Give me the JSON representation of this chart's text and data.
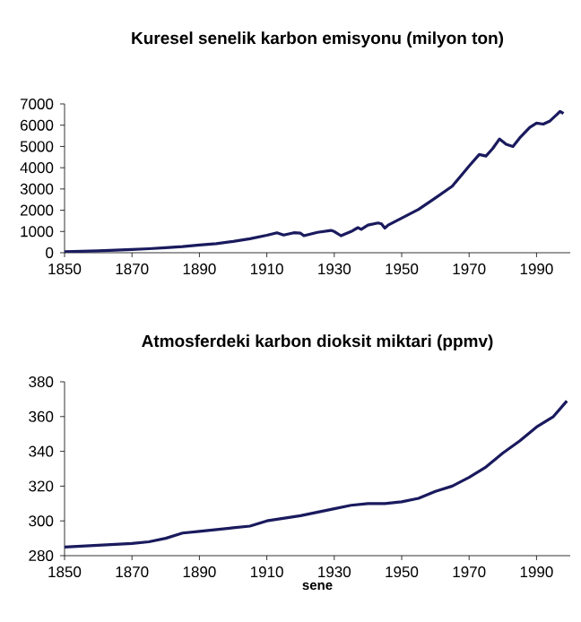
{
  "chart_data": [
    {
      "type": "line",
      "title": "Kuresel senelik karbon emisyonu (milyon ton)",
      "color": "#1a1a5e",
      "x": [
        1850,
        1855,
        1860,
        1865,
        1870,
        1875,
        1880,
        1885,
        1890,
        1895,
        1900,
        1905,
        1910,
        1913,
        1915,
        1918,
        1920,
        1921,
        1925,
        1929,
        1930,
        1932,
        1935,
        1937,
        1938,
        1940,
        1943,
        1944,
        1945,
        1946,
        1950,
        1955,
        1960,
        1965,
        1970,
        1973,
        1975,
        1977,
        1979,
        1981,
        1983,
        1985,
        1988,
        1990,
        1992,
        1994,
        1996,
        1997,
        1998
      ],
      "values": [
        50,
        70,
        90,
        120,
        150,
        190,
        240,
        290,
        360,
        430,
        530,
        660,
        820,
        940,
        830,
        940,
        920,
        800,
        960,
        1050,
        1000,
        800,
        1000,
        1180,
        1100,
        1300,
        1400,
        1360,
        1160,
        1300,
        1630,
        2040,
        2580,
        3130,
        4080,
        4620,
        4550,
        4900,
        5350,
        5100,
        5000,
        5400,
        5900,
        6100,
        6050,
        6200,
        6500,
        6650,
        6550
      ],
      "xlim": [
        1850,
        2000
      ],
      "xticks": [
        1850,
        1870,
        1890,
        1910,
        1930,
        1950,
        1970,
        1990
      ],
      "ylim": [
        0,
        7000
      ],
      "yticks": [
        0,
        1000,
        2000,
        3000,
        4000,
        5000,
        6000,
        7000
      ]
    },
    {
      "type": "line",
      "title": "Atmosferdeki karbon dioksit miktari (ppmv)",
      "xlabel": "sene",
      "color": "#1a1a5e",
      "x": [
        1850,
        1860,
        1870,
        1875,
        1880,
        1885,
        1890,
        1900,
        1905,
        1910,
        1920,
        1930,
        1935,
        1940,
        1945,
        1950,
        1955,
        1960,
        1965,
        1970,
        1975,
        1980,
        1985,
        1990,
        1995,
        1999
      ],
      "values": [
        285,
        286,
        287,
        288,
        290,
        293,
        294,
        296,
        297,
        300,
        303,
        307,
        309,
        310,
        310,
        311,
        313,
        317,
        320,
        325,
        331,
        339,
        346,
        354,
        360,
        369
      ],
      "xlim": [
        1850,
        2000
      ],
      "xticks": [
        1850,
        1870,
        1890,
        1910,
        1930,
        1950,
        1970,
        1990
      ],
      "ylim": [
        280,
        380
      ],
      "yticks": [
        280,
        300,
        320,
        340,
        360,
        380
      ]
    }
  ]
}
